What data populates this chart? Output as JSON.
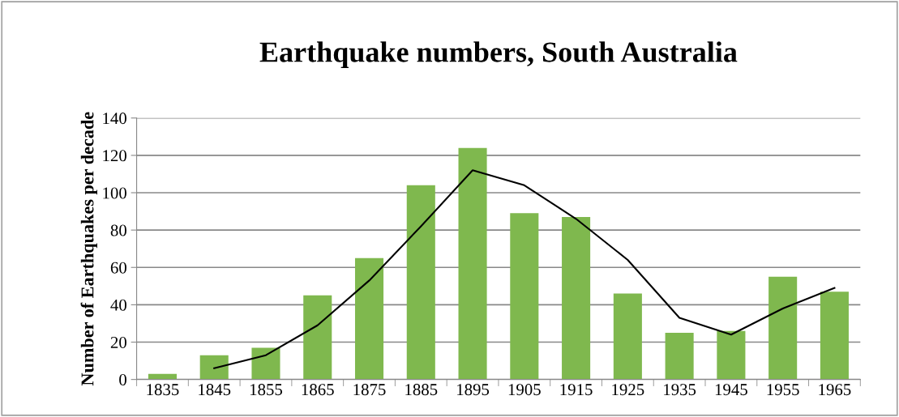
{
  "chart_data": {
    "type": "bar",
    "title": "Earthquake numbers, South Australia",
    "ylabel": "Number of Earthquakes per decade",
    "categories": [
      "1835",
      "1845",
      "1855",
      "1865",
      "1875",
      "1885",
      "1895",
      "1905",
      "1915",
      "1925",
      "1935",
      "1945",
      "1955",
      "1965"
    ],
    "series": [
      {
        "color": "#7fb84e",
        "values": [
          3,
          13,
          17,
          45,
          65,
          104,
          124,
          89,
          87,
          46,
          25,
          26,
          55,
          47
        ]
      },
      {
        "type": "line",
        "color": "#000000",
        "values": [
          null,
          6,
          13,
          29,
          53,
          82,
          112,
          104,
          86,
          64,
          33,
          24,
          38,
          49
        ]
      }
    ],
    "ylim": [
      0,
      140
    ],
    "yticks": [
      0,
      20,
      40,
      60,
      80,
      100,
      120,
      140
    ],
    "grid": "y"
  }
}
